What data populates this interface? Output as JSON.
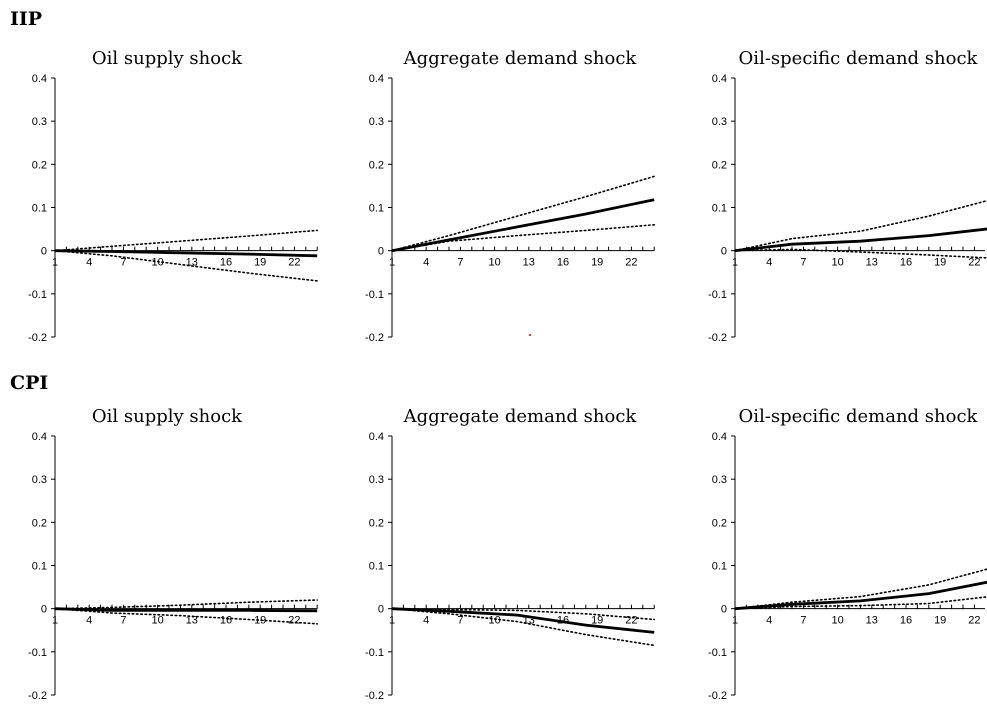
{
  "rows": [
    {
      "label": "IIP",
      "panel_titles": [
        "Oil supply shock",
        "Aggregate demand shock",
        "Oil-specific demand shock"
      ]
    },
    {
      "label": "CPI",
      "panel_titles": [
        "Oil supply shock",
        "Aggregate demand shock",
        "Oil-specific demand shock"
      ]
    }
  ],
  "axis": {
    "y_ticks": [
      "0.4",
      "0.3",
      "0.2",
      "0.1",
      "0",
      "-0.1",
      "-0.2"
    ],
    "x_ticks": [
      "1",
      "4",
      "7",
      "10",
      "13",
      "16",
      "19",
      "22"
    ]
  },
  "colors": {
    "line": "#000000",
    "background": "#ffffff"
  },
  "chart_data": [
    {
      "type": "line",
      "row": "IIP",
      "title": "Oil supply shock",
      "ylim": [
        -0.2,
        0.4
      ],
      "xlim": [
        1,
        24
      ],
      "grid": false,
      "series": [
        {
          "style": "solid",
          "x": [
            1,
            6,
            12,
            18,
            24
          ],
          "values": [
            0.0,
            -0.002,
            -0.005,
            -0.008,
            -0.012
          ]
        },
        {
          "style": "dotted",
          "x": [
            1,
            6,
            12,
            18,
            24
          ],
          "values": [
            0.0,
            0.01,
            0.022,
            0.034,
            0.047
          ]
        },
        {
          "style": "dotted",
          "x": [
            1,
            6,
            12,
            18,
            24
          ],
          "values": [
            0.0,
            -0.012,
            -0.032,
            -0.052,
            -0.07
          ]
        }
      ]
    },
    {
      "type": "line",
      "row": "IIP",
      "title": "Aggregate demand shock",
      "ylim": [
        -0.2,
        0.4
      ],
      "xlim": [
        1,
        24
      ],
      "grid": false,
      "series": [
        {
          "style": "solid",
          "x": [
            1,
            6,
            12,
            18,
            24
          ],
          "values": [
            0.0,
            0.025,
            0.055,
            0.085,
            0.118
          ]
        },
        {
          "style": "dotted",
          "x": [
            1,
            6,
            12,
            18,
            24
          ],
          "values": [
            0.0,
            0.035,
            0.08,
            0.125,
            0.172
          ]
        },
        {
          "style": "dotted",
          "x": [
            1,
            6,
            12,
            18,
            24
          ],
          "values": [
            0.0,
            0.022,
            0.035,
            0.047,
            0.06
          ]
        }
      ]
    },
    {
      "type": "line",
      "row": "IIP",
      "title": "Oil-specific demand shock",
      "ylim": [
        -0.2,
        0.4
      ],
      "xlim": [
        1,
        24
      ],
      "grid": false,
      "series": [
        {
          "style": "solid",
          "x": [
            1,
            6,
            12,
            18,
            24
          ],
          "values": [
            0.0,
            0.015,
            0.022,
            0.035,
            0.053
          ]
        },
        {
          "style": "dotted",
          "x": [
            1,
            6,
            12,
            18,
            24
          ],
          "values": [
            0.0,
            0.028,
            0.045,
            0.08,
            0.122
          ]
        },
        {
          "style": "dotted",
          "x": [
            1,
            6,
            12,
            18,
            24
          ],
          "values": [
            0.0,
            0.003,
            -0.003,
            -0.01,
            -0.018
          ]
        }
      ]
    },
    {
      "type": "line",
      "row": "CPI",
      "title": "Oil supply shock",
      "ylim": [
        -0.2,
        0.4
      ],
      "xlim": [
        1,
        24
      ],
      "grid": false,
      "series": [
        {
          "style": "solid",
          "x": [
            1,
            6,
            12,
            18,
            24
          ],
          "values": [
            0.0,
            -0.004,
            -0.004,
            -0.004,
            -0.005
          ]
        },
        {
          "style": "dotted",
          "x": [
            1,
            6,
            12,
            18,
            24
          ],
          "values": [
            0.0,
            0.003,
            0.008,
            0.015,
            0.02
          ]
        },
        {
          "style": "dotted",
          "x": [
            1,
            6,
            12,
            18,
            24
          ],
          "values": [
            0.0,
            -0.01,
            -0.016,
            -0.025,
            -0.035
          ]
        }
      ]
    },
    {
      "type": "line",
      "row": "CPI",
      "title": "Aggregate demand shock",
      "ylim": [
        -0.2,
        0.4
      ],
      "xlim": [
        1,
        24
      ],
      "grid": false,
      "series": [
        {
          "style": "solid",
          "x": [
            1,
            6,
            12,
            18,
            24
          ],
          "values": [
            0.0,
            -0.006,
            -0.015,
            -0.038,
            -0.055
          ]
        },
        {
          "style": "dotted",
          "x": [
            1,
            6,
            12,
            18,
            24
          ],
          "values": [
            0.0,
            -0.002,
            -0.004,
            -0.012,
            -0.025
          ]
        },
        {
          "style": "dotted",
          "x": [
            1,
            6,
            12,
            18,
            24
          ],
          "values": [
            0.0,
            -0.012,
            -0.03,
            -0.06,
            -0.085
          ]
        }
      ]
    },
    {
      "type": "line",
      "row": "CPI",
      "title": "Oil-specific demand shock",
      "ylim": [
        -0.2,
        0.4
      ],
      "xlim": [
        1,
        24
      ],
      "grid": false,
      "series": [
        {
          "style": "solid",
          "x": [
            1,
            6,
            12,
            18,
            24
          ],
          "values": [
            0.0,
            0.01,
            0.018,
            0.035,
            0.066
          ]
        },
        {
          "style": "dotted",
          "x": [
            1,
            6,
            12,
            18,
            24
          ],
          "values": [
            0.0,
            0.015,
            0.028,
            0.055,
            0.098
          ]
        },
        {
          "style": "dotted",
          "x": [
            1,
            6,
            12,
            18,
            24
          ],
          "values": [
            0.0,
            0.005,
            0.007,
            0.012,
            0.03
          ]
        }
      ]
    }
  ]
}
